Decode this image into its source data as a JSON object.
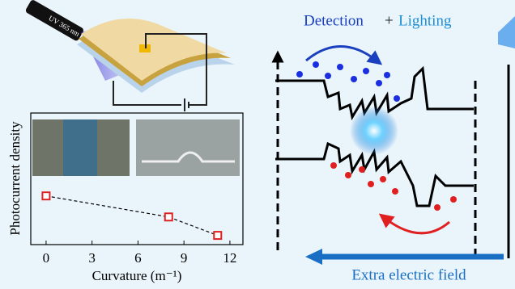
{
  "chart_data": {
    "type": "scatter",
    "y_label": "Photocurrent density",
    "x_label": "Curvature (m⁻¹)",
    "x": [
      0,
      8,
      11.2
    ],
    "values": [
      0.37,
      0.21,
      0.07
    ],
    "color": "#e02020",
    "xlim": [
      -1,
      12.85
    ],
    "ylim": [
      0,
      1
    ],
    "xticks": [
      0,
      3,
      6,
      9,
      12
    ]
  },
  "device": {
    "label": "UV 365 nm"
  },
  "diagram": {
    "detection": "Detection",
    "plus": "+",
    "lighting": "Lighting",
    "field": "Extra electric field"
  }
}
